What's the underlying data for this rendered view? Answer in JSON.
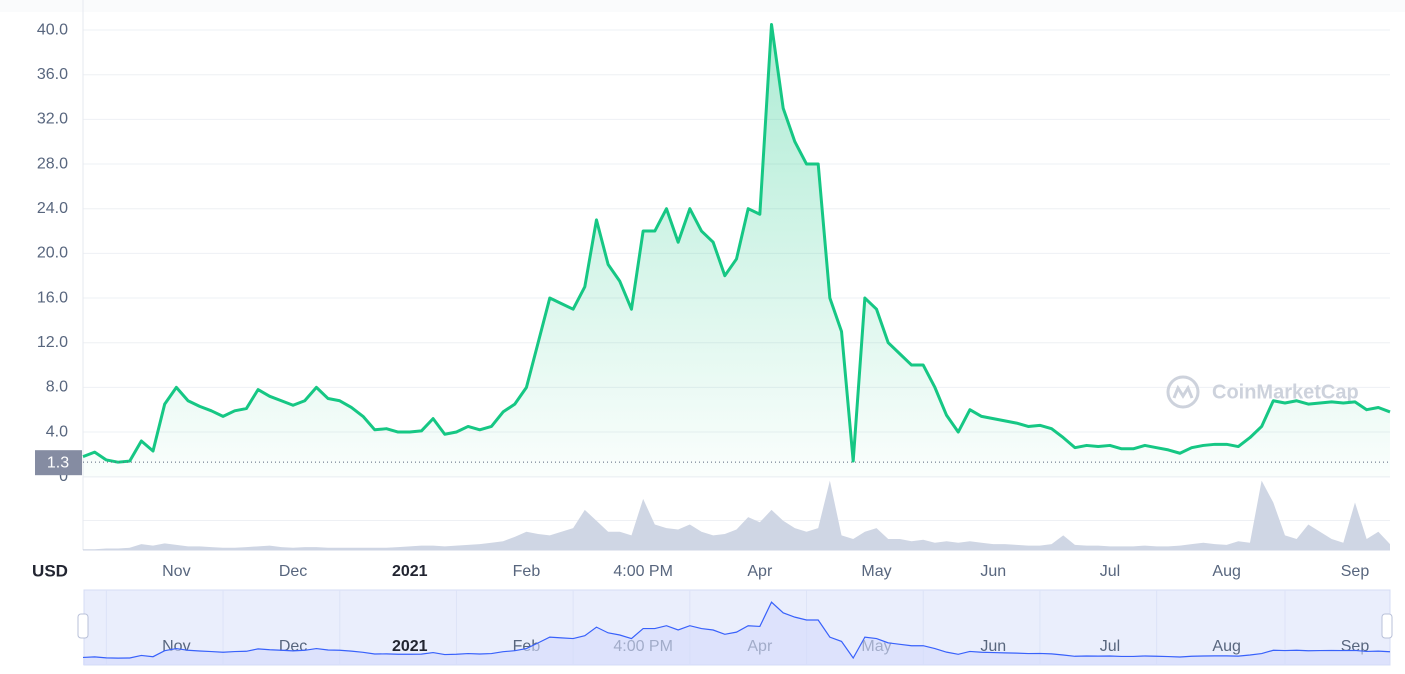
{
  "chart_data": {
    "type": "line",
    "y_label": "USD",
    "watermark": "CoinMarketCap",
    "price_marker": 1.3,
    "color": "#16c784",
    "categories": [
      null,
      null,
      null,
      null,
      null,
      null,
      null,
      null,
      "Nov",
      null,
      null,
      null,
      null,
      null,
      null,
      null,
      null,
      null,
      "Dec",
      null,
      null,
      null,
      null,
      null,
      null,
      null,
      null,
      null,
      "2021",
      null,
      null,
      null,
      null,
      null,
      null,
      null,
      null,
      null,
      "Feb",
      null,
      null,
      null,
      null,
      null,
      null,
      null,
      null,
      null,
      "4:00 PM",
      null,
      null,
      null,
      null,
      null,
      null,
      null,
      null,
      null,
      "Apr",
      null,
      null,
      null,
      null,
      null,
      null,
      null,
      null,
      null,
      "May",
      null,
      null,
      null,
      null,
      null,
      null,
      null,
      null,
      null,
      "Jun",
      null,
      null,
      null,
      null,
      null,
      null,
      null,
      null,
      null,
      "Jul",
      null,
      null,
      null,
      null,
      null,
      null,
      null,
      null,
      null,
      "Aug",
      null,
      null,
      null,
      null,
      null,
      null,
      null,
      null,
      null,
      null,
      "Sep",
      null,
      null,
      null
    ],
    "values": [
      1.8,
      2.2,
      1.5,
      1.3,
      1.4,
      3.2,
      2.3,
      6.5,
      8.0,
      6.8,
      6.3,
      5.9,
      5.4,
      5.9,
      6.1,
      7.8,
      7.2,
      6.8,
      6.4,
      6.8,
      8.0,
      7.0,
      6.8,
      6.2,
      5.4,
      4.2,
      4.3,
      4.0,
      4.0,
      4.1,
      5.2,
      3.8,
      4.0,
      4.5,
      4.2,
      4.5,
      5.8,
      6.5,
      8.0,
      12.0,
      16.0,
      15.5,
      15.0,
      17.0,
      23.0,
      19.0,
      17.5,
      15.0,
      22.0,
      22.0,
      24.0,
      21.0,
      24.0,
      22.0,
      21.0,
      18.0,
      19.5,
      24.0,
      23.5,
      40.5,
      33.0,
      30.0,
      28.0,
      28.0,
      16.0,
      13.0,
      1.4,
      16.0,
      15.0,
      12.0,
      11.0,
      10.0,
      10.0,
      8.0,
      5.5,
      4.0,
      6.0,
      5.4,
      5.2,
      5.0,
      4.8,
      4.5,
      4.6,
      4.3,
      3.5,
      2.6,
      2.8,
      2.7,
      2.8,
      2.5,
      2.5,
      2.8,
      2.6,
      2.4,
      2.1,
      2.6,
      2.8,
      2.9,
      2.9,
      2.7,
      3.5,
      4.5,
      6.8,
      6.6,
      6.8,
      6.5,
      6.6,
      6.7,
      6.6,
      6.7,
      6.0,
      6.2,
      5.8
    ],
    "volume": {
      "axis": "y2",
      "color": "#cfd6e4",
      "values": [
        1,
        1,
        2,
        2,
        3,
        8,
        6,
        9,
        7,
        5,
        5,
        4,
        3,
        3,
        4,
        5,
        6,
        4,
        3,
        4,
        4,
        3,
        3,
        3,
        3,
        3,
        3,
        4,
        5,
        6,
        6,
        5,
        6,
        7,
        8,
        10,
        12,
        18,
        25,
        22,
        20,
        25,
        30,
        55,
        40,
        25,
        25,
        20,
        70,
        35,
        30,
        28,
        35,
        25,
        20,
        22,
        28,
        45,
        38,
        55,
        40,
        30,
        25,
        30,
        95,
        20,
        15,
        25,
        30,
        15,
        15,
        12,
        14,
        10,
        12,
        10,
        12,
        10,
        8,
        8,
        7,
        6,
        6,
        8,
        20,
        7,
        6,
        6,
        5,
        5,
        5,
        6,
        5,
        5,
        6,
        8,
        10,
        8,
        7,
        12,
        10,
        95,
        65,
        20,
        15,
        35,
        25,
        15,
        10,
        65,
        15,
        25,
        8
      ]
    },
    "ylim": [
      0,
      42
    ],
    "yticks": [
      0,
      {
        "value": 4,
        "label": "4.0"
      },
      {
        "value": 8,
        "label": "8.0"
      },
      {
        "value": 12,
        "label": "12.0"
      },
      {
        "value": 16,
        "label": "16.0"
      },
      {
        "value": 20,
        "label": "20.0"
      },
      {
        "value": 24,
        "label": "24.0"
      },
      {
        "value": 28,
        "label": "28.0"
      },
      {
        "value": 32,
        "label": "32.0"
      },
      {
        "value": 36,
        "label": "36.0"
      },
      {
        "value": 40,
        "label": "40.0"
      }
    ],
    "y2lim": [
      0,
      100
    ],
    "grid": true,
    "navigator_color": "#3861fb"
  }
}
